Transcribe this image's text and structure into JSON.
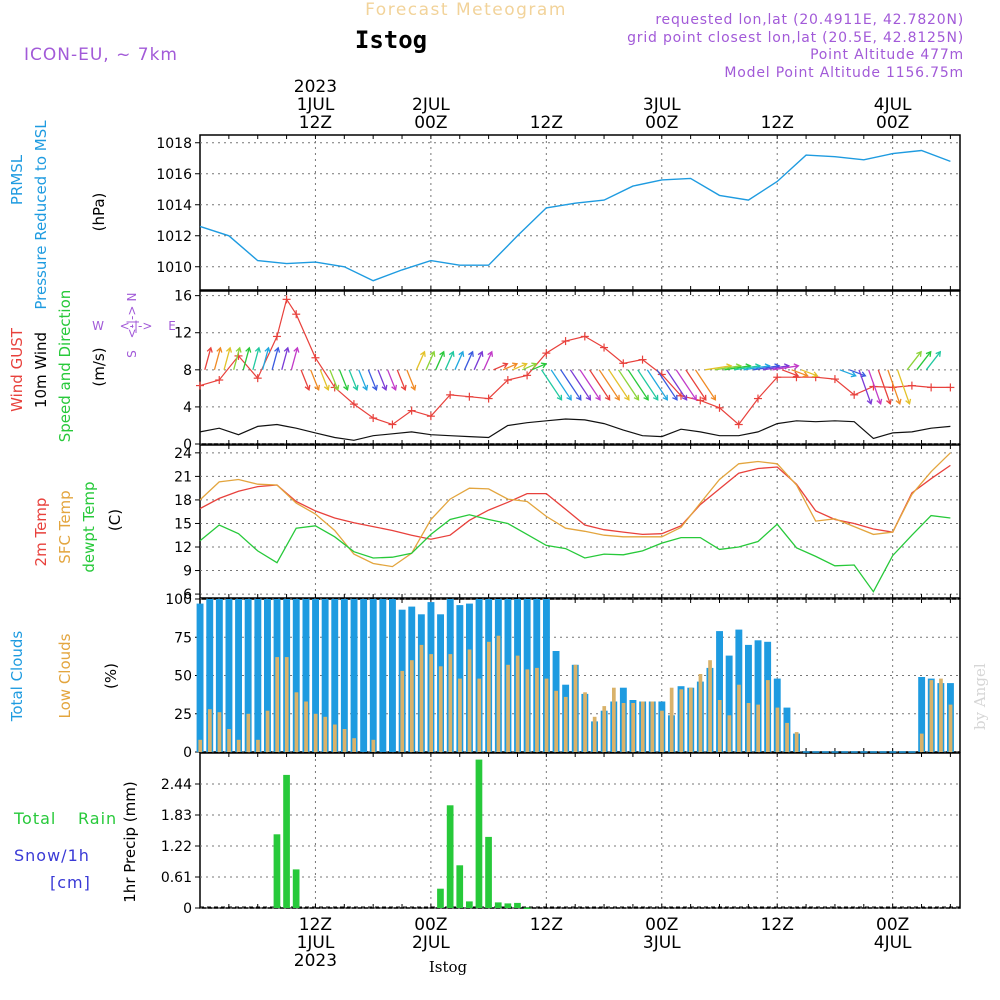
{
  "header": {
    "top_title": "Forecast Meteogram",
    "station": "Istog",
    "model": "ICON-EU, ~ 7km",
    "requested": "requested lon,lat (20.4911E, 42.7820N)",
    "grid_point": "grid point closest lon,lat (20.5E, 42.8125N)",
    "point_alt": "Point Altitude 477m",
    "model_alt": "Model Point Altitude 1156.75m",
    "footer_station": "Istog",
    "watermark": "by Angel"
  },
  "colors": {
    "pressure": "#1e9be0",
    "gust": "#e8413c",
    "wind": "#111111",
    "temp2m": "#e8413c",
    "sfc": "#e3a53e",
    "dew": "#27c93a",
    "total_cloud": "#1e9be0",
    "low_cloud": "#d9b26a",
    "rain": "#27c93a",
    "snow": "#3a3ad6",
    "purple": "#a25ad8"
  },
  "time_axis": {
    "top_year": "2023",
    "top_labels": [
      {
        "t": 12,
        "line1": "1JUL",
        "line2": "12Z"
      },
      {
        "t": 24,
        "line1": "2JUL",
        "line2": "00Z"
      },
      {
        "t": 36,
        "line1": "",
        "line2": "12Z"
      },
      {
        "t": 48,
        "line1": "3JUL",
        "line2": "00Z"
      },
      {
        "t": 60,
        "line1": "",
        "line2": "12Z"
      },
      {
        "t": 72,
        "line1": "4JUL",
        "line2": "00Z"
      }
    ],
    "bottom_year": "2023",
    "bottom_labels": [
      {
        "t": 12,
        "line1": "12Z",
        "line2": "1JUL"
      },
      {
        "t": 24,
        "line1": "00Z",
        "line2": "2JUL"
      },
      {
        "t": 36,
        "line1": "12Z",
        "line2": ""
      },
      {
        "t": 48,
        "line1": "00Z",
        "line2": "3JUL"
      },
      {
        "t": 60,
        "line1": "12Z",
        "line2": ""
      },
      {
        "t": 72,
        "line1": "00Z",
        "line2": "4JUL"
      }
    ]
  },
  "legends": {
    "pressure": [
      "PRMSL",
      "Pressure Reduced to MSL",
      "(hPa)"
    ],
    "wind": [
      "Wind GUST",
      "10m Wind",
      "Speed and Direction",
      "(m/s)"
    ],
    "compass": {
      "n": "N",
      "s": "S",
      "w": "W",
      "e": "E",
      "arrow": "<-|->"
    },
    "temp": [
      "2m Temp",
      "SFC Temp",
      "dewpt Temp",
      "(C)"
    ],
    "cloud": [
      "Total Clouds",
      "Low Clouds",
      "(%)"
    ],
    "precip": [
      "Total",
      "Rain",
      "Snow/1h",
      "[cm]",
      "1hr Precip (mm)"
    ]
  },
  "chart_data": [
    {
      "type": "line",
      "title": "PRMSL Pressure Reduced to MSL",
      "ylabel": "(hPa)",
      "ylim": [
        1008.5,
        1018.5
      ],
      "yticks": [
        1010,
        1012,
        1014,
        1016,
        1018
      ],
      "x_hours": [
        0,
        3,
        6,
        9,
        12,
        15,
        18,
        21,
        24,
        27,
        30,
        33,
        36,
        39,
        42,
        45,
        48,
        51,
        54,
        57,
        60,
        63,
        66,
        69,
        72,
        75,
        78
      ],
      "series": [
        {
          "name": "PRMSL",
          "values": [
            1012.6,
            1012.0,
            1010.4,
            1010.2,
            1010.3,
            1010.0,
            1009.1,
            1009.8,
            1010.4,
            1010.1,
            1010.1,
            1012.0,
            1013.8,
            1014.1,
            1014.3,
            1015.2,
            1015.6,
            1015.7,
            1014.6,
            1014.3,
            1015.5,
            1017.2,
            1017.1,
            1016.9,
            1017.3,
            1017.5,
            1016.8
          ]
        }
      ]
    },
    {
      "type": "line",
      "title": "Wind GUST / 10m Wind Speed and Direction",
      "ylabel": "(m/s)",
      "ylim": [
        0,
        16.5
      ],
      "yticks": [
        0,
        4,
        8,
        12,
        16
      ],
      "x_hours": [
        0,
        2,
        4,
        6,
        8,
        9,
        10,
        12,
        14,
        16,
        18,
        20,
        22,
        24,
        26,
        28,
        30,
        32,
        34,
        36,
        38,
        40,
        42,
        44,
        46,
        48,
        50,
        52,
        54,
        56,
        58,
        60,
        62,
        64,
        66,
        68,
        70,
        72,
        74,
        76,
        78
      ],
      "series": [
        {
          "name": "Wind GUST",
          "values": [
            6.3,
            6.9,
            9.5,
            7.1,
            11.6,
            15.6,
            14.0,
            9.3,
            6.1,
            4.3,
            2.8,
            2.1,
            3.6,
            3.0,
            5.3,
            5.1,
            4.9,
            6.9,
            7.4,
            9.8,
            11.1,
            11.6,
            10.4,
            8.7,
            9.1,
            7.5,
            5.2,
            4.7,
            3.9,
            2.1,
            4.9,
            7.2,
            7.2,
            7.2,
            7.0,
            5.3,
            6.2,
            6.1,
            6.3,
            6.1,
            6.1
          ]
        },
        {
          "name": "10m Wind",
          "values": [
            1.3,
            1.7,
            1.0,
            1.9,
            2.1,
            1.9,
            1.7,
            1.2,
            0.7,
            0.4,
            0.9,
            1.1,
            1.3,
            1.0,
            0.9,
            0.8,
            0.7,
            2.0,
            2.3,
            2.5,
            2.7,
            2.6,
            2.2,
            1.5,
            0.9,
            0.8,
            1.6,
            1.3,
            0.9,
            0.9,
            1.3,
            2.2,
            2.5,
            2.4,
            2.5,
            2.4,
            0.6,
            1.2,
            1.3,
            1.7,
            1.9
          ]
        }
      ]
    },
    {
      "type": "line",
      "title": "2m Temp / SFC Temp / dewpt Temp",
      "ylabel": "(C)",
      "ylim": [
        5.5,
        25
      ],
      "yticks": [
        6,
        9,
        12,
        15,
        18,
        21,
        24
      ],
      "x_hours": [
        0,
        2,
        4,
        6,
        8,
        10,
        12,
        14,
        16,
        18,
        20,
        22,
        24,
        26,
        28,
        30,
        32,
        34,
        36,
        38,
        40,
        42,
        44,
        46,
        48,
        50,
        52,
        54,
        56,
        58,
        60,
        62,
        64,
        66,
        68,
        70,
        72,
        74,
        76,
        78
      ],
      "series": [
        {
          "name": "2m Temp",
          "values": [
            16.9,
            18.2,
            19.1,
            19.7,
            19.9,
            17.8,
            16.6,
            15.7,
            15.1,
            14.6,
            14.1,
            13.5,
            13.0,
            13.5,
            15.4,
            16.7,
            17.7,
            18.8,
            18.8,
            16.8,
            14.8,
            14.2,
            13.9,
            13.6,
            13.7,
            14.7,
            17.4,
            19.4,
            21.4,
            22.0,
            22.2,
            20.0,
            16.6,
            15.5,
            15.0,
            14.3,
            13.9,
            18.9,
            20.7,
            22.4
          ]
        },
        {
          "name": "SFC Temp",
          "values": [
            18.0,
            20.3,
            20.6,
            20.0,
            19.9,
            17.6,
            16.2,
            14.1,
            11.1,
            9.9,
            9.5,
            11.2,
            15.5,
            18.1,
            19.5,
            19.4,
            18.1,
            17.8,
            15.9,
            14.4,
            14.0,
            13.5,
            13.3,
            13.3,
            13.3,
            14.5,
            17.6,
            20.6,
            22.6,
            22.9,
            22.6,
            19.9,
            15.3,
            15.6,
            14.6,
            13.6,
            13.9,
            18.7,
            21.6,
            24.0
          ]
        },
        {
          "name": "dewpt Temp",
          "values": [
            12.8,
            14.8,
            13.7,
            11.5,
            10.0,
            14.4,
            14.7,
            13.3,
            11.4,
            10.6,
            10.7,
            11.2,
            13.6,
            15.5,
            16.1,
            15.5,
            15.0,
            13.6,
            12.2,
            11.8,
            10.6,
            11.1,
            11.0,
            11.5,
            12.5,
            13.2,
            13.2,
            11.7,
            12.0,
            12.7,
            14.9,
            11.9,
            10.8,
            9.6,
            9.7,
            6.3,
            10.9,
            13.5,
            16.0,
            15.7
          ]
        }
      ]
    },
    {
      "type": "bar",
      "title": "Total Clouds / Low Clouds",
      "ylabel": "(%)",
      "ylim": [
        0,
        100
      ],
      "yticks": [
        0,
        25,
        50,
        75,
        100
      ],
      "x_hours": [
        0,
        1,
        2,
        3,
        4,
        5,
        6,
        7,
        8,
        9,
        10,
        11,
        12,
        13,
        14,
        15,
        16,
        17,
        18,
        19,
        20,
        21,
        22,
        23,
        24,
        25,
        26,
        27,
        28,
        29,
        30,
        31,
        32,
        33,
        34,
        35,
        36,
        37,
        38,
        39,
        40,
        41,
        42,
        43,
        44,
        45,
        46,
        47,
        48,
        49,
        50,
        51,
        52,
        53,
        54,
        55,
        56,
        57,
        58,
        59,
        60,
        61,
        62,
        63,
        64,
        65,
        66,
        67,
        68,
        69,
        70,
        71,
        72,
        73,
        74,
        75,
        76,
        77,
        78
      ],
      "series": [
        {
          "name": "Total Clouds",
          "values": [
            97,
            100,
            100,
            100,
            100,
            100,
            100,
            100,
            100,
            100,
            100,
            100,
            100,
            100,
            100,
            100,
            100,
            100,
            100,
            100,
            100,
            93,
            95,
            90,
            98,
            90,
            100,
            96,
            97,
            100,
            100,
            100,
            100,
            100,
            100,
            100,
            100,
            66,
            44,
            57,
            38,
            20,
            27,
            33,
            42,
            34,
            33,
            33,
            33,
            24,
            43,
            42,
            46,
            55,
            79,
            63,
            80,
            70,
            73,
            72,
            48,
            29,
            12,
            0,
            0,
            0,
            0,
            0,
            0,
            0,
            0,
            0,
            0,
            0,
            0,
            49,
            48,
            45,
            45
          ]
        },
        {
          "name": "Low Clouds",
          "values": [
            8,
            28,
            26,
            15,
            8,
            25,
            8,
            27,
            62,
            62,
            39,
            33,
            25,
            23,
            18,
            15,
            9,
            0,
            8,
            0,
            0,
            53,
            60,
            70,
            64,
            56,
            64,
            48,
            67,
            48,
            72,
            76,
            57,
            63,
            54,
            55,
            48,
            40,
            36,
            57,
            39,
            23,
            30,
            42,
            32,
            32,
            33,
            33,
            27,
            42,
            41,
            42,
            51,
            60,
            34,
            24,
            44,
            32,
            31,
            47,
            29,
            19,
            13,
            0,
            0,
            0,
            0,
            0,
            0,
            0,
            0,
            0,
            0,
            0,
            0,
            12,
            47,
            48,
            31
          ]
        }
      ]
    },
    {
      "type": "bar",
      "title": "Total Rain / Snow 1h",
      "ylabel": "1hr Precip (mm)",
      "ylim": [
        0,
        3.05
      ],
      "yticks": [
        0,
        0.61,
        1.22,
        1.83,
        2.44
      ],
      "ytick_labels": [
        "0",
        "0.61",
        "1.22",
        "1.83",
        "2.44"
      ],
      "x_hours": [
        8,
        9,
        10,
        25,
        26,
        27,
        28,
        29,
        30,
        31,
        32,
        33,
        34
      ],
      "series": [
        {
          "name": "Total Rain",
          "values": [
            1.45,
            2.62,
            0.76,
            0.38,
            2.02,
            0.84,
            0.13,
            2.92,
            1.4,
            0.11,
            0.09,
            0.1,
            0.01
          ]
        }
      ]
    }
  ]
}
